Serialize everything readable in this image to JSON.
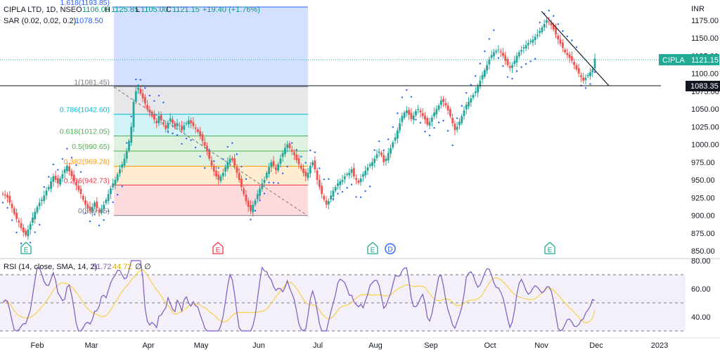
{
  "header": {
    "symbol": "CIPLA LTD, 1D, NSE",
    "o_label": "O",
    "o_value": "1106.00",
    "h_label": "H",
    "h_value": "1125.85",
    "l_label": "L",
    "l_value": "1105.00",
    "c_label": "C",
    "c_value": "1121.15",
    "change": "+19.40 (+1.76%)",
    "sar_label": "SAR (0.02, 0.02, 0.2)",
    "sar_value": "1078.50",
    "rsi_label": "RSI (14, close, SMA, 14, 2)",
    "rsi_value": "51.72",
    "rsi_sma": "44.72",
    "rsi_extra1": "∅",
    "rsi_extra2": "∅"
  },
  "price_axis": {
    "unit": "INR",
    "ticks": [
      "1175.00",
      "1150.00",
      "1125.00",
      "1100.00",
      "1075.00",
      "1050.00",
      "1025.00",
      "1000.00",
      "975.00",
      "950.00",
      "925.00",
      "900.00",
      "875.00",
      "850.00"
    ],
    "last_price_tag": "1121.15",
    "symbol_tag": "CIPLA",
    "hline_tag": "1083.35"
  },
  "rsi_axis": {
    "ticks": [
      "80.00",
      "60.00",
      "40.00"
    ]
  },
  "time_axis": {
    "ticks": [
      "Feb",
      "Mar",
      "Apr",
      "May",
      "Jun",
      "Jul",
      "Aug",
      "Sep",
      "Oct",
      "Nov",
      "Dec",
      "2023"
    ]
  },
  "fib": {
    "levels": [
      {
        "label": "1.618(1193.85)",
        "value": 1193.85,
        "color": "#2962ff"
      },
      {
        "label": "1(1081.45)",
        "value": 1081.45,
        "color": "#787b86"
      },
      {
        "label": "0.786(1042.60)",
        "value": 1042.6,
        "color": "#00bcd4"
      },
      {
        "label": "0.618(1012.05)",
        "value": 1012.05,
        "color": "#4caf50"
      },
      {
        "label": "0.5(990.65)",
        "value": 990.65,
        "color": "#4caf50"
      },
      {
        "label": "0.382(969.28)",
        "value": 969.28,
        "color": "#ff9800"
      },
      {
        "label": "0.236(942.73)",
        "value": 942.73,
        "color": "#f23645"
      },
      {
        "label": "0(899.85)",
        "value": 899.85,
        "color": "#787b86"
      }
    ]
  },
  "markers": [
    {
      "text": "E",
      "kind": "earnings-green"
    },
    {
      "text": "E",
      "kind": "earnings-red"
    },
    {
      "text": "E",
      "kind": "earnings-green"
    },
    {
      "text": "D",
      "kind": "dividend"
    },
    {
      "text": "E",
      "kind": "earnings-green"
    }
  ],
  "colors": {
    "up": "#26a69a",
    "down": "#ef5350",
    "sar": "#2962ff",
    "rsi": "#7e57c2",
    "rsi_sma": "#f7d147",
    "tag_green": "#22ab94",
    "tag_black": "#131722"
  },
  "chart_data": {
    "type": "candlestick",
    "title": "CIPLA LTD, 1D, NSE",
    "ylabel": "INR",
    "ylim": [
      840,
      1195
    ],
    "rsi_ylim": [
      20,
      85
    ],
    "rsi_levels": [
      70,
      50,
      30
    ],
    "x_ticks": [
      "Feb",
      "Mar",
      "Apr",
      "May",
      "Jun",
      "Jul",
      "Aug",
      "Sep",
      "Oct",
      "Nov",
      "Dec",
      "2023"
    ],
    "series": [
      {
        "name": "Price (approx. daily closes)",
        "values": [
          930,
          928,
          925,
          918,
          910,
          902,
          895,
          890,
          882,
          876,
          872,
          880,
          888,
          897,
          905,
          912,
          918,
          922,
          928,
          935,
          940,
          948,
          955,
          950,
          945,
          952,
          958,
          965,
          970,
          962,
          955,
          948,
          942,
          936,
          930,
          922,
          915,
          910,
          906,
          912,
          918,
          910,
          905,
          908,
          915,
          922,
          930,
          938,
          945,
          950,
          958,
          965,
          972,
          980,
          990,
          1005,
          1025,
          1060,
          1075,
          1080,
          1072,
          1065,
          1058,
          1050,
          1045,
          1040,
          1035,
          1030,
          1040,
          1034,
          1028,
          1022,
          1030,
          1037,
          1030,
          1024,
          1030,
          1027,
          1020,
          1027,
          1030,
          1034,
          1030,
          1026,
          1022,
          1018,
          1012,
          1005,
          998,
          990,
          980,
          970,
          962,
          955,
          950,
          955,
          960,
          968,
          975,
          980,
          978,
          970,
          960,
          950,
          940,
          930,
          920,
          912,
          906,
          915,
          921,
          930,
          938,
          945,
          950,
          960,
          968,
          975,
          970,
          964,
          972,
          980,
          988,
          995,
          1000,
          995,
          990,
          985,
          978,
          972,
          966,
          960,
          955,
          960,
          970,
          975,
          965,
          950,
          940,
          930,
          922,
          915,
          920,
          928,
          935,
          940,
          945,
          948,
          950,
          955,
          958,
          960,
          965,
          955,
          950,
          946,
          952,
          958,
          963,
          968,
          972,
          975,
          980,
          986,
          990,
          985,
          975,
          980,
          988,
          995,
          1003,
          1010,
          1020,
          1030,
          1040,
          1045,
          1048,
          1042,
          1036,
          1041,
          1047,
          1050,
          1045,
          1040,
          1035,
          1028,
          1032,
          1038,
          1045,
          1050,
          1055,
          1062,
          1060,
          1055,
          1048,
          1040,
          1030,
          1020,
          1025,
          1032,
          1040,
          1048,
          1056,
          1060,
          1065,
          1070,
          1075,
          1082,
          1090,
          1098,
          1105,
          1112,
          1120,
          1126,
          1130,
          1132,
          1134,
          1130,
          1125,
          1118,
          1112,
          1108,
          1112,
          1118,
          1125,
          1130,
          1133,
          1137,
          1140,
          1143,
          1146,
          1148,
          1152,
          1155,
          1160,
          1165,
          1170,
          1175,
          1172,
          1168,
          1162,
          1155,
          1148,
          1142,
          1136,
          1130,
          1126,
          1122,
          1118,
          1112,
          1106,
          1100,
          1095,
          1090,
          1094,
          1098,
          1102,
          1106,
          1121.15
        ]
      },
      {
        "name": "RSI (14, close, SMA, 14, 2)",
        "last": 51.72
      },
      {
        "name": "RSI SMA",
        "last": 44.72
      }
    ],
    "horizontal_line": 1083.35,
    "last_close": 1121.15
  }
}
